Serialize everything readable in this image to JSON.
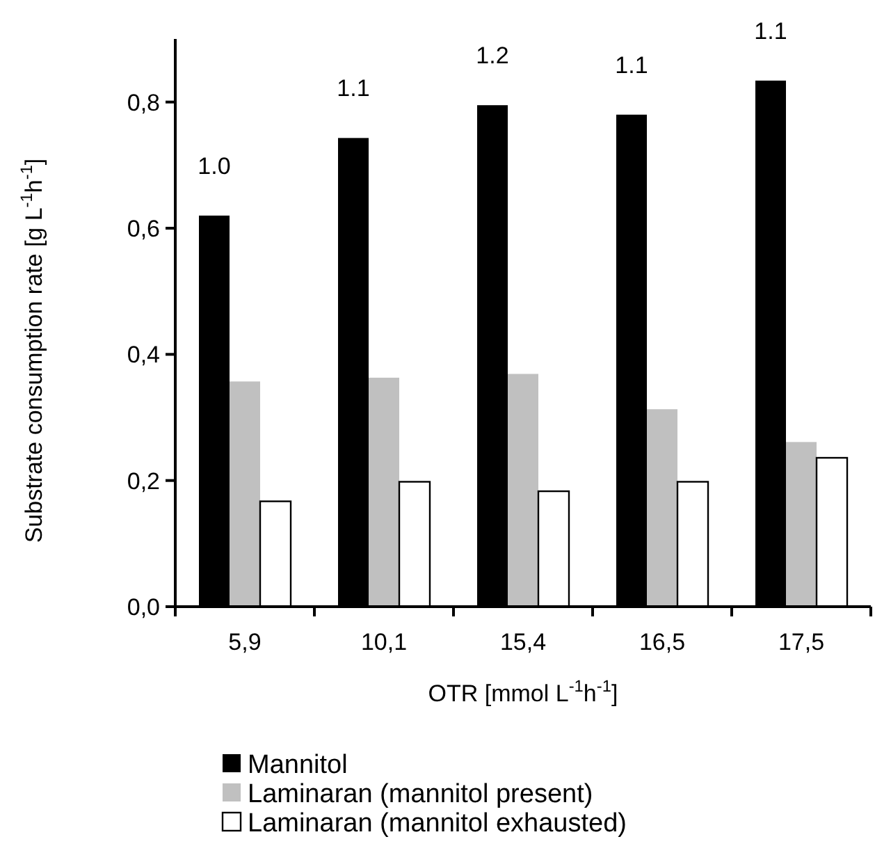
{
  "chart_data": {
    "type": "bar",
    "xlabel": "OTR [mmol L$^{-1}$h$^{-1}$]",
    "ylabel": "Substrate consumption rate [g L$^{-1}$h$^{-1}$]",
    "categories": [
      "5,9",
      "10,1",
      "15,4",
      "16,5",
      "17,5"
    ],
    "series": [
      {
        "name": "Mannitol",
        "color": "#000000",
        "values": [
          0.62,
          0.743,
          0.795,
          0.78,
          0.834
        ]
      },
      {
        "name": "Laminaran (mannitol present)",
        "color": "#c0c0c0",
        "values": [
          0.357,
          0.363,
          0.369,
          0.313,
          0.261
        ]
      },
      {
        "name": "Laminaran (mannitol exhausted)",
        "color": "#ffffff",
        "values": [
          0.167,
          0.198,
          0.183,
          0.198,
          0.236
        ]
      }
    ],
    "ylim": [
      0,
      0.9
    ],
    "yticks": [
      {
        "value": 0,
        "label": "0,0"
      },
      {
        "value": 0.2,
        "label": "0,2"
      },
      {
        "value": 0.4,
        "label": "0,4"
      },
      {
        "value": 0.6,
        "label": "0,6"
      },
      {
        "value": 0.8,
        "label": "0,8"
      }
    ],
    "annotations": [
      "1.0",
      "1.1",
      "1.2",
      "1.1",
      "1.1"
    ],
    "legend": "bottom",
    "grid": false
  }
}
